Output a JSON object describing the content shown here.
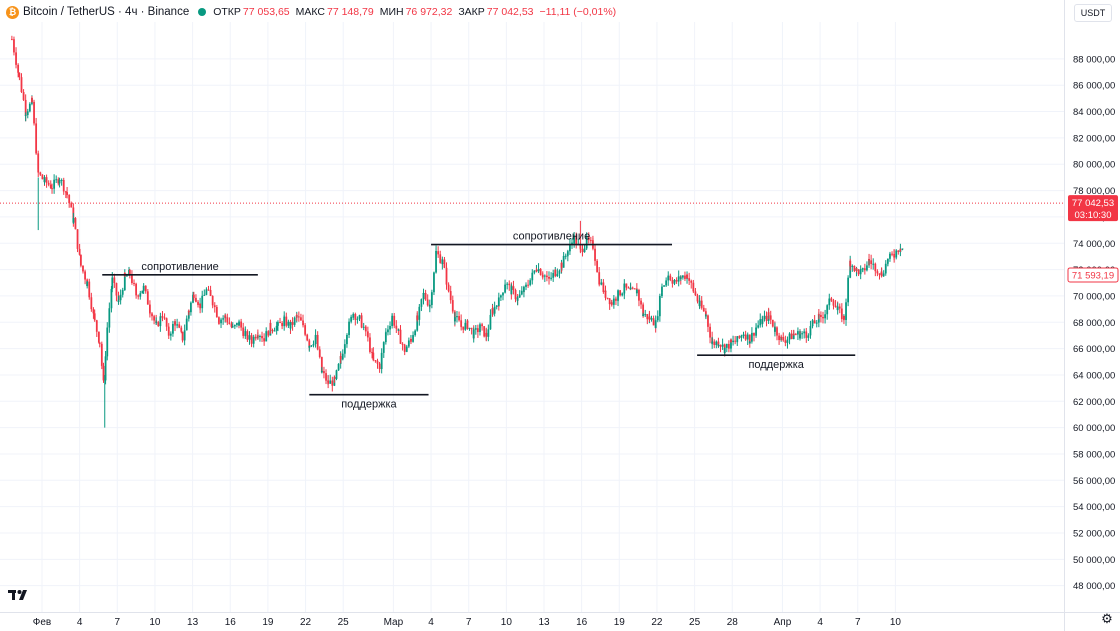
{
  "legend": {
    "symbol": "Bitcoin / TetherUS · 4ч · Binance",
    "open_label": "ОТКР",
    "open_value": "77 053,65",
    "high_label": "МАКС",
    "high_value": "77 148,79",
    "low_label": "МИН",
    "low_value": "76 972,32",
    "close_label": "ЗАКР",
    "close_value": "77 042,53",
    "change": "−11,11 (−0,01%)"
  },
  "currency": "USDT",
  "price_labels": {
    "last_price": "77 042,53",
    "countdown": "03:10:30",
    "marker": "71 593,19"
  },
  "icons": {
    "logo": "tradingview-logo-icon",
    "settings": "gear-icon",
    "coin": "bitcoin-icon"
  },
  "colors": {
    "up": "#089981",
    "down": "#f23645",
    "grid": "#f0f3fa",
    "text": "#131722"
  },
  "chart_data": {
    "type": "candlestick",
    "timeframe": "4ч",
    "ylim": [
      46000,
      90800
    ],
    "y_ticks": [
      {
        "value": 48000,
        "label": "48 000,00"
      },
      {
        "value": 50000,
        "label": "50 000,00"
      },
      {
        "value": 52000,
        "label": "52 000,00"
      },
      {
        "value": 54000,
        "label": "54 000,00"
      },
      {
        "value": 56000,
        "label": "56 000,00"
      },
      {
        "value": 58000,
        "label": "58 000,00"
      },
      {
        "value": 60000,
        "label": "60 000,00"
      },
      {
        "value": 62000,
        "label": "62 000,00"
      },
      {
        "value": 64000,
        "label": "64 000,00"
      },
      {
        "value": 66000,
        "label": "66 000,00"
      },
      {
        "value": 68000,
        "label": "68 000,00"
      },
      {
        "value": 70000,
        "label": "70 000,00"
      },
      {
        "value": 72000,
        "label": "72 000,00"
      },
      {
        "value": 74000,
        "label": "74 000,00"
      },
      {
        "value": 76000,
        "label": "76 000,00"
      },
      {
        "value": 78000,
        "label": "78 000,00"
      },
      {
        "value": 80000,
        "label": "80 000,00"
      },
      {
        "value": 82000,
        "label": "82 000,00"
      },
      {
        "value": 84000,
        "label": "84 000,00"
      },
      {
        "value": 86000,
        "label": "86 000,00"
      },
      {
        "value": 88000,
        "label": "88 000,00"
      }
    ],
    "x_ticks": [
      {
        "day": 0,
        "label": "Фев"
      },
      {
        "day": 3,
        "label": "4"
      },
      {
        "day": 6,
        "label": "7"
      },
      {
        "day": 9,
        "label": "10"
      },
      {
        "day": 12,
        "label": "13"
      },
      {
        "day": 15,
        "label": "16"
      },
      {
        "day": 18,
        "label": "19"
      },
      {
        "day": 21,
        "label": "22"
      },
      {
        "day": 24,
        "label": "25"
      },
      {
        "day": 28,
        "label": "Мар"
      },
      {
        "day": 31,
        "label": "4"
      },
      {
        "day": 34,
        "label": "7"
      },
      {
        "day": 37,
        "label": "10"
      },
      {
        "day": 40,
        "label": "13"
      },
      {
        "day": 43,
        "label": "16"
      },
      {
        "day": 46,
        "label": "19"
      },
      {
        "day": 49,
        "label": "22"
      },
      {
        "day": 52,
        "label": "25"
      },
      {
        "day": 55,
        "label": "28"
      },
      {
        "day": 59,
        "label": "Апр"
      },
      {
        "day": 62,
        "label": "4"
      },
      {
        "day": 65,
        "label": "7"
      },
      {
        "day": 68,
        "label": "10"
      }
    ],
    "path_points": [
      [
        -2.4,
        89500
      ],
      [
        -1.8,
        86500
      ],
      [
        -1.3,
        84000
      ],
      [
        -0.8,
        84700
      ],
      [
        -0.3,
        79300
      ],
      [
        0.2,
        78700
      ],
      [
        0.8,
        78300
      ],
      [
        1.4,
        79000
      ],
      [
        2.0,
        77700
      ],
      [
        2.5,
        75800
      ],
      [
        3.1,
        72300
      ],
      [
        3.6,
        71000
      ],
      [
        4.2,
        68000
      ],
      [
        4.6,
        66500
      ],
      [
        4.9,
        63300
      ],
      [
        5.2,
        67600
      ],
      [
        5.6,
        71200
      ],
      [
        6.1,
        69500
      ],
      [
        6.6,
        71400
      ],
      [
        7.0,
        71700
      ],
      [
        7.5,
        70100
      ],
      [
        8.1,
        70600
      ],
      [
        8.6,
        69000
      ],
      [
        9.1,
        67700
      ],
      [
        9.6,
        68600
      ],
      [
        10.1,
        67100
      ],
      [
        10.6,
        68000
      ],
      [
        11.2,
        66800
      ],
      [
        11.7,
        68900
      ],
      [
        12.1,
        70200
      ],
      [
        12.6,
        69300
      ],
      [
        13.1,
        70400
      ],
      [
        13.6,
        69600
      ],
      [
        14.1,
        68200
      ],
      [
        14.6,
        68400
      ],
      [
        15.2,
        67500
      ],
      [
        15.7,
        67900
      ],
      [
        16.2,
        67000
      ],
      [
        16.7,
        66600
      ],
      [
        17.2,
        67300
      ],
      [
        17.7,
        66800
      ],
      [
        18.2,
        67600
      ],
      [
        18.8,
        67700
      ],
      [
        19.3,
        68100
      ],
      [
        19.8,
        67700
      ],
      [
        20.3,
        68400
      ],
      [
        20.8,
        67800
      ],
      [
        21.3,
        66300
      ],
      [
        21.8,
        66800
      ],
      [
        22.3,
        64200
      ],
      [
        22.8,
        63400
      ],
      [
        23.3,
        63500
      ],
      [
        23.8,
        65200
      ],
      [
        24.3,
        67300
      ],
      [
        24.8,
        68700
      ],
      [
        25.3,
        68200
      ],
      [
        25.8,
        67300
      ],
      [
        26.4,
        65000
      ],
      [
        26.9,
        64700
      ],
      [
        27.4,
        67200
      ],
      [
        27.9,
        68400
      ],
      [
        28.4,
        67100
      ],
      [
        28.9,
        65900
      ],
      [
        29.4,
        66700
      ],
      [
        29.9,
        68200
      ],
      [
        30.4,
        70100
      ],
      [
        30.9,
        69300
      ],
      [
        31.4,
        73300
      ],
      [
        31.9,
        72600
      ],
      [
        32.4,
        70400
      ],
      [
        32.9,
        68400
      ],
      [
        33.4,
        67700
      ],
      [
        33.9,
        67800
      ],
      [
        34.4,
        67100
      ],
      [
        34.9,
        67600
      ],
      [
        35.4,
        67000
      ],
      [
        35.9,
        68900
      ],
      [
        36.4,
        69600
      ],
      [
        36.9,
        71000
      ],
      [
        37.4,
        70400
      ],
      [
        37.9,
        69800
      ],
      [
        38.4,
        70400
      ],
      [
        38.9,
        71200
      ],
      [
        39.4,
        72200
      ],
      [
        39.9,
        71700
      ],
      [
        40.4,
        71200
      ],
      [
        40.9,
        71800
      ],
      [
        41.4,
        72400
      ],
      [
        41.9,
        73400
      ],
      [
        42.4,
        74400
      ],
      [
        42.9,
        73400
      ],
      [
        43.4,
        74200
      ],
      [
        43.9,
        73800
      ],
      [
        44.4,
        71200
      ],
      [
        44.9,
        70100
      ],
      [
        45.4,
        69500
      ],
      [
        45.9,
        70100
      ],
      [
        46.4,
        70600
      ],
      [
        46.9,
        70300
      ],
      [
        47.4,
        70400
      ],
      [
        47.9,
        68600
      ],
      [
        48.4,
        68300
      ],
      [
        48.9,
        67900
      ],
      [
        49.4,
        70600
      ],
      [
        49.9,
        71600
      ],
      [
        50.4,
        71000
      ],
      [
        50.9,
        71400
      ],
      [
        51.4,
        71600
      ],
      [
        51.9,
        70400
      ],
      [
        52.4,
        69300
      ],
      [
        52.9,
        68500
      ],
      [
        53.4,
        66400
      ],
      [
        53.9,
        66500
      ],
      [
        54.4,
        66000
      ],
      [
        54.9,
        66400
      ],
      [
        55.4,
        66600
      ],
      [
        55.9,
        67200
      ],
      [
        56.4,
        66700
      ],
      [
        56.9,
        67600
      ],
      [
        57.4,
        68100
      ],
      [
        57.9,
        68500
      ],
      [
        58.4,
        67500
      ],
      [
        58.9,
        66700
      ],
      [
        59.4,
        66700
      ],
      [
        59.9,
        67100
      ],
      [
        60.4,
        67100
      ],
      [
        60.9,
        67100
      ],
      [
        61.4,
        67800
      ],
      [
        61.9,
        68300
      ],
      [
        62.4,
        68700
      ],
      [
        62.9,
        69900
      ],
      [
        63.4,
        68900
      ],
      [
        63.9,
        68300
      ],
      [
        64.4,
        72600
      ],
      [
        64.9,
        71900
      ],
      [
        65.4,
        71800
      ],
      [
        65.9,
        72700
      ],
      [
        66.4,
        72200
      ],
      [
        66.9,
        71700
      ],
      [
        67.4,
        72700
      ],
      [
        67.9,
        73200
      ],
      [
        68.4,
        73800
      ],
      [
        68.6,
        73600
      ]
    ],
    "spike_lows": [
      {
        "day": 5.0,
        "value": 60000
      },
      {
        "day": -0.3,
        "value": 75000
      }
    ],
    "spike_highs": [
      {
        "day": 42.9,
        "value": 75700
      }
    ],
    "levels": [
      {
        "label": "сопротивление",
        "value": 71600,
        "from_day": 4.8,
        "to_day": 17.2
      },
      {
        "label": "поддержка",
        "value": 62500,
        "from_day": 21.3,
        "to_day": 30.8
      },
      {
        "label": "сопротивление",
        "value": 73900,
        "from_day": 31.0,
        "to_day": 50.2
      },
      {
        "label": "поддержка",
        "value": 65500,
        "from_day": 52.2,
        "to_day": 64.8
      }
    ],
    "last_price_value": 77042.53,
    "marker_value": 71593.19
  }
}
